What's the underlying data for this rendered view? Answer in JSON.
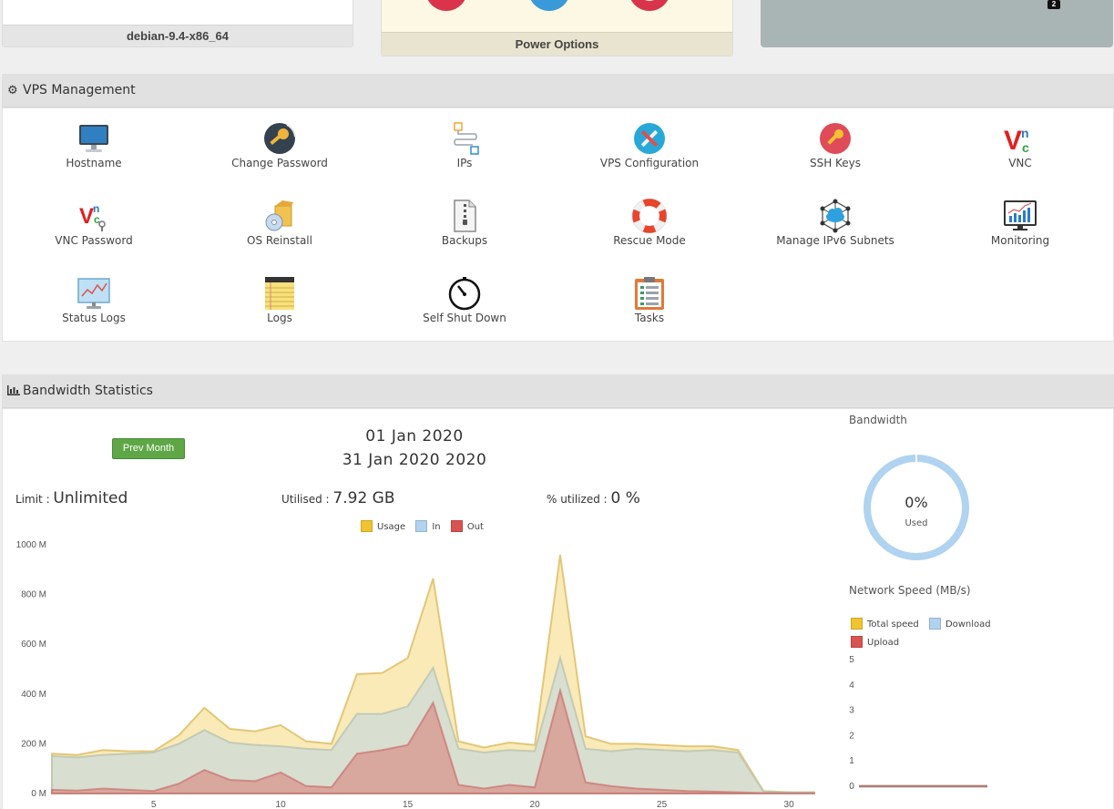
{
  "top_cards": {
    "os_label": "debian-9.4-x86_64",
    "power_label": "Power Options",
    "graph_badge": "2",
    "power_buttons": [
      {
        "name": "power-off-icon",
        "color": "#d9344c"
      },
      {
        "name": "restart-icon",
        "color": "#3a9ad9"
      },
      {
        "name": "power-on-icon",
        "color": "#d9344c"
      }
    ]
  },
  "vps_management": {
    "title": "VPS Management",
    "items": [
      {
        "label": "Hostname",
        "icon": "monitor-icon"
      },
      {
        "label": "Change Password",
        "icon": "key-icon"
      },
      {
        "label": "IPs",
        "icon": "ip-network-icon"
      },
      {
        "label": "VPS Configuration",
        "icon": "tools-icon"
      },
      {
        "label": "SSH Keys",
        "icon": "ssh-key-icon"
      },
      {
        "label": "VNC",
        "icon": "vnc-icon"
      },
      {
        "label": "VNC Password",
        "icon": "vnc-password-icon"
      },
      {
        "label": "OS Reinstall",
        "icon": "os-reinstall-icon"
      },
      {
        "label": "Backups",
        "icon": "backup-zip-icon"
      },
      {
        "label": "Rescue Mode",
        "icon": "lifebuoy-icon"
      },
      {
        "label": "Manage IPv6 Subnets",
        "icon": "ipv6-cloud-icon"
      },
      {
        "label": "Monitoring",
        "icon": "monitoring-icon"
      },
      {
        "label": "Status Logs",
        "icon": "status-chart-icon"
      },
      {
        "label": "Logs",
        "icon": "notepad-icon"
      },
      {
        "label": "Self Shut Down",
        "icon": "timer-icon"
      },
      {
        "label": "Tasks",
        "icon": "clipboard-icon"
      }
    ]
  },
  "bandwidth": {
    "title": "Bandwidth Statistics",
    "prev_button": "Prev Month",
    "date_from": "01 Jan 2020",
    "date_to": "31 Jan 2020 2020",
    "limit_label": "Limit : ",
    "limit_value": "Unlimited",
    "utilised_label": "Utilised : ",
    "utilised_value": "7.92 GB",
    "percent_label": "% utilized : ",
    "percent_value": "0 %",
    "donut_title": "Bandwidth",
    "donut_value": "0%",
    "donut_sub": "Used",
    "donut_fraction": 0.0,
    "speed_title": "Network Speed (MB/s)",
    "colors": {
      "usage": "#f0c330",
      "in": "#afd3f0",
      "out": "#d9534f"
    }
  },
  "chart_data": [
    {
      "type": "area",
      "legend": [
        "Usage",
        "In",
        "Out"
      ],
      "legend_position": "top-center",
      "x": [
        1,
        2,
        3,
        4,
        5,
        6,
        7,
        8,
        9,
        10,
        11,
        12,
        13,
        14,
        15,
        16,
        17,
        18,
        19,
        20,
        21,
        22,
        23,
        24,
        25,
        26,
        27,
        28,
        29,
        30,
        31
      ],
      "xticks": [
        5,
        10,
        15,
        20,
        25,
        30
      ],
      "ylim": [
        0,
        1000
      ],
      "yticks": [
        "0 M",
        "200 M",
        "400 M",
        "600 M",
        "800 M",
        "1000 M"
      ],
      "series": [
        {
          "name": "Usage",
          "values": [
            160,
            155,
            175,
            170,
            170,
            235,
            345,
            260,
            250,
            275,
            210,
            200,
            480,
            485,
            545,
            865,
            210,
            185,
            205,
            195,
            960,
            230,
            200,
            200,
            195,
            190,
            190,
            175,
            10,
            5,
            5
          ]
        },
        {
          "name": "In",
          "values": [
            150,
            145,
            155,
            160,
            165,
            200,
            255,
            205,
            195,
            190,
            180,
            175,
            320,
            320,
            350,
            505,
            180,
            165,
            175,
            170,
            545,
            180,
            170,
            180,
            175,
            170,
            175,
            165,
            8,
            4,
            4
          ]
        },
        {
          "name": "Out",
          "values": [
            15,
            12,
            20,
            15,
            10,
            40,
            95,
            55,
            50,
            85,
            30,
            25,
            160,
            175,
            195,
            365,
            35,
            20,
            35,
            25,
            415,
            45,
            30,
            20,
            15,
            10,
            8,
            5,
            2,
            2,
            2
          ]
        }
      ]
    },
    {
      "type": "line",
      "legend": [
        "Total speed",
        "Download",
        "Upload"
      ],
      "ylim": [
        0,
        5
      ],
      "yticks": [
        "0",
        "1",
        "2",
        "3",
        "4",
        "5"
      ],
      "series": [
        {
          "name": "Total speed",
          "values": [
            0,
            0
          ]
        },
        {
          "name": "Download",
          "values": [
            0,
            0
          ]
        },
        {
          "name": "Upload",
          "values": [
            0,
            0
          ]
        }
      ]
    }
  ]
}
